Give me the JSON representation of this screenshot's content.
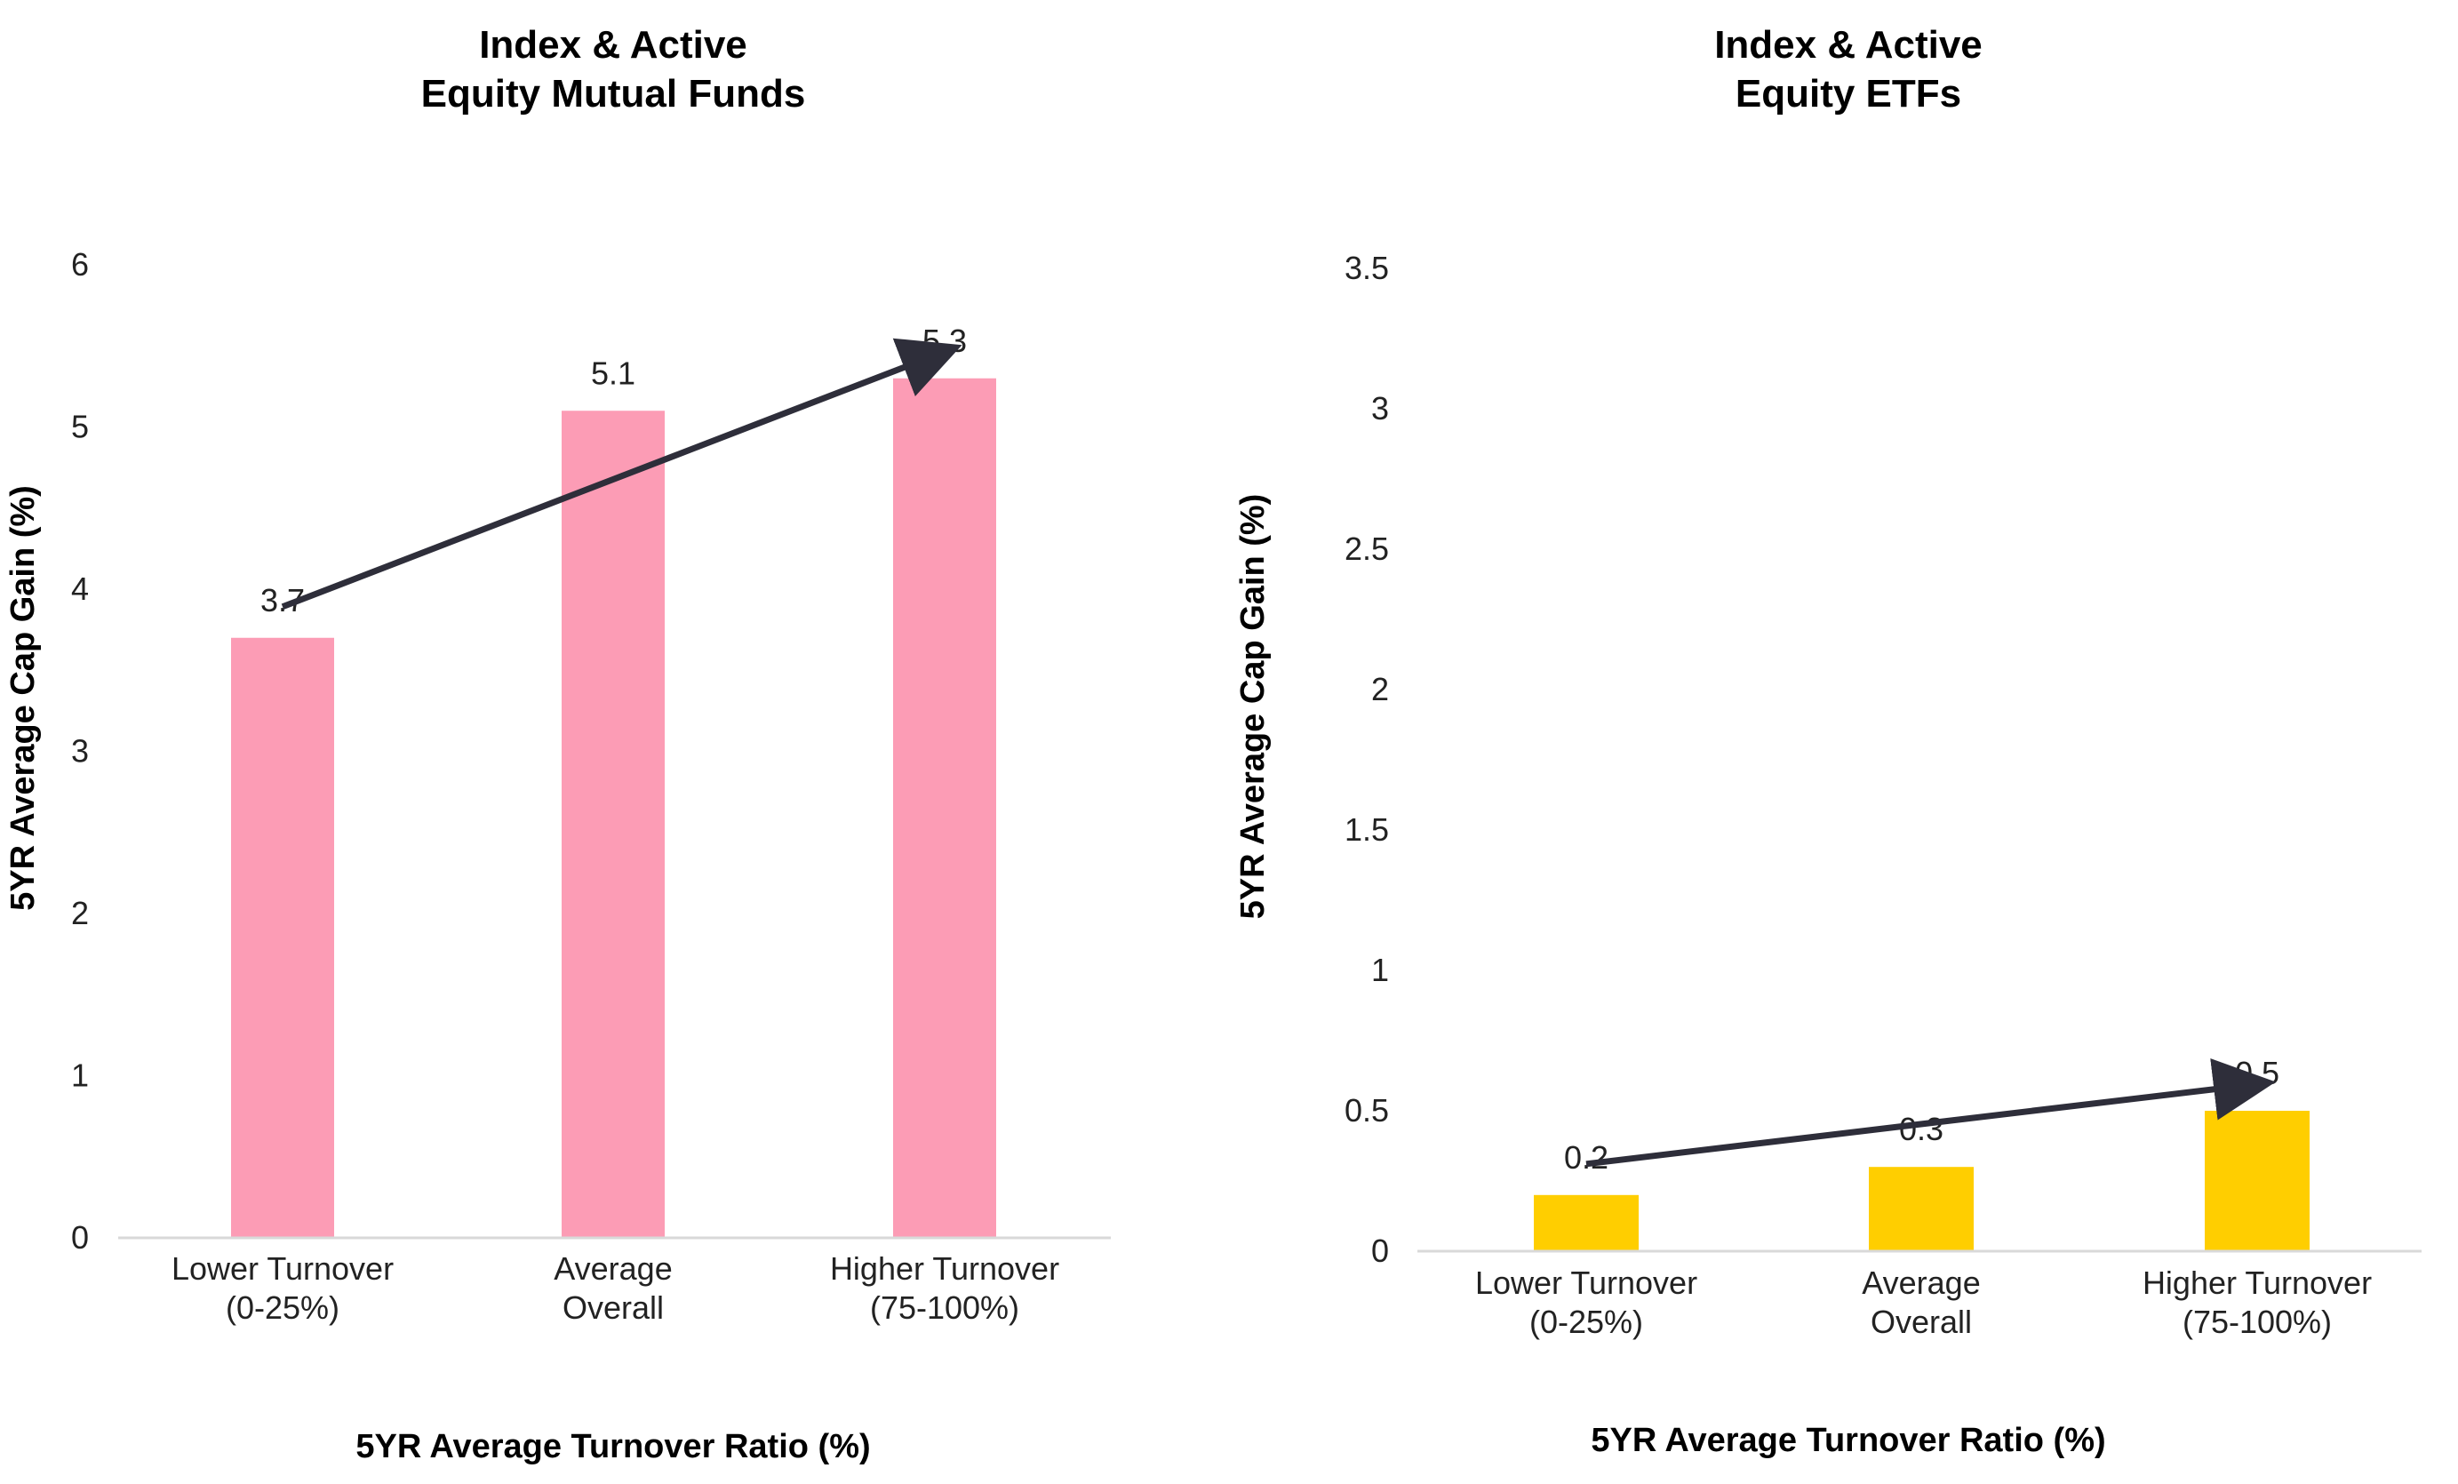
{
  "chart_data": [
    {
      "type": "bar",
      "title": [
        "Index & Active",
        "Equity Mutual Funds"
      ],
      "xlabel": "5YR Average Turnover Ratio (%)",
      "ylabel": "5YR Average Cap Gain (%)",
      "categories": [
        [
          "Lower Turnover",
          "(0-25%)"
        ],
        [
          "Average",
          "Overall"
        ],
        [
          "Higher Turnover",
          "(75-100%)"
        ]
      ],
      "values": [
        3.7,
        5.1,
        5.3
      ],
      "data_labels": [
        "3.7",
        "5.1",
        "5.3"
      ],
      "ylim": [
        0,
        6
      ],
      "yticks": [
        "0",
        "1",
        "2",
        "3",
        "4",
        "5",
        "6"
      ],
      "ytick_values": [
        0,
        1,
        2,
        3,
        4,
        5,
        6
      ],
      "bar_color": "#FC9CB5",
      "trend_arrow": true,
      "grid": false
    },
    {
      "type": "bar",
      "title": [
        "Index & Active",
        "Equity ETFs"
      ],
      "xlabel": "5YR Average Turnover Ratio (%)",
      "ylabel": "5YR Average Cap Gain (%)",
      "categories": [
        [
          "Lower Turnover",
          "(0-25%)"
        ],
        [
          "Average",
          "Overall"
        ],
        [
          "Higher Turnover",
          "(75-100%)"
        ]
      ],
      "values": [
        0.2,
        0.3,
        0.5
      ],
      "data_labels": [
        "0.2",
        "0.3",
        "0.5"
      ],
      "ylim": [
        0,
        3.5
      ],
      "yticks": [
        "0",
        "0.5",
        "1",
        "1.5",
        "2",
        "2.5",
        "3",
        "3.5"
      ],
      "ytick_values": [
        0,
        0.5,
        1,
        1.5,
        2,
        2.5,
        3,
        3.5
      ],
      "bar_color": "#FFCE00",
      "trend_arrow": true,
      "grid": false
    }
  ],
  "colors": {
    "arrow": "#2E2E3A",
    "axis_line": "#D9D9D9",
    "text": "#000000"
  }
}
